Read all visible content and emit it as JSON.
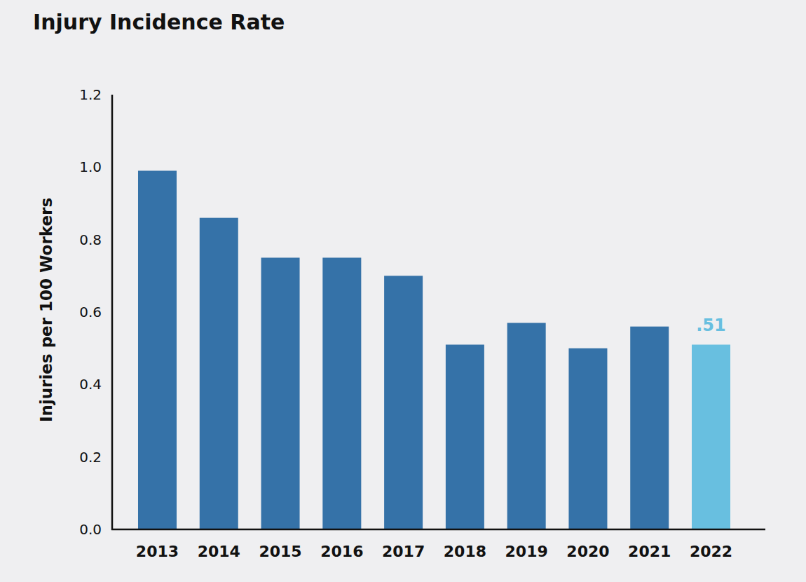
{
  "chart_data": {
    "type": "bar",
    "title": "Injury Incidence Rate",
    "y_label": "Injuries per 100 Workers",
    "categories": [
      "2013",
      "2014",
      "2015",
      "2016",
      "2017",
      "2018",
      "2019",
      "2020",
      "2021",
      "2022"
    ],
    "values": [
      0.99,
      0.86,
      0.75,
      0.75,
      0.7,
      0.51,
      0.57,
      0.5,
      0.56,
      0.51
    ],
    "value_labels": [
      null,
      null,
      null,
      null,
      null,
      null,
      null,
      null,
      null,
      ".51"
    ],
    "data_labels": true,
    "colors": [
      "#3572a8",
      "#3572a8",
      "#3572a8",
      "#3572a8",
      "#3572a8",
      "#3572a8",
      "#3572a8",
      "#3572a8",
      "#3572a8",
      "#68bfe0"
    ],
    "ylim": [
      0,
      1.2
    ],
    "yticks": [
      {
        "value": 0,
        "label": "0.0"
      },
      0.2,
      0.4,
      0.6,
      0.8,
      {
        "value": 1,
        "label": "1.0"
      },
      1.2
    ],
    "grid": false
  }
}
